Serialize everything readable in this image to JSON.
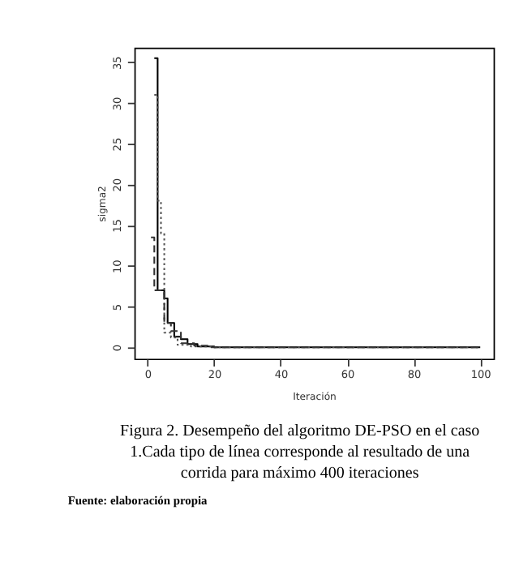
{
  "chart_data": {
    "type": "step",
    "xlabel": "Iteración",
    "ylabel": "sigma2",
    "xlim": [
      -4,
      104
    ],
    "ylim": [
      -1.4,
      36.8
    ],
    "xticks": [
      0,
      20,
      40,
      60,
      80,
      100
    ],
    "yticks": [
      0,
      5,
      10,
      15,
      20,
      25,
      30,
      35
    ],
    "grid": false,
    "series": [
      {
        "color": "#000000",
        "line_style": "solid",
        "x": [
          2,
          3,
          5,
          6,
          8,
          10,
          12,
          15,
          20,
          100
        ],
        "values": [
          35.5,
          7,
          6,
          3,
          1.3,
          1,
          0.4,
          0.1,
          0,
          0
        ]
      },
      {
        "color": "#555555",
        "line_style": "dotted",
        "x": [
          2,
          3,
          4,
          5,
          7,
          9,
          13,
          20,
          100
        ],
        "values": [
          31,
          18,
          14,
          1.8,
          1.2,
          0.3,
          0.1,
          0,
          0
        ]
      },
      {
        "color": "#333333",
        "line_style": "dashed",
        "x": [
          1,
          2,
          3,
          5,
          7,
          10,
          14,
          18,
          100
        ],
        "values": [
          13.5,
          7,
          7,
          3,
          2,
          0.5,
          0.2,
          0,
          0
        ]
      }
    ],
    "annotations": [
      "Figura 2. Desempeño del algoritmo DE-PSO en el caso 1.Cada tipo de línea corresponde al resultado de una corrida para máximo 400 iteraciones",
      "Fuente: elaboración propia"
    ]
  }
}
